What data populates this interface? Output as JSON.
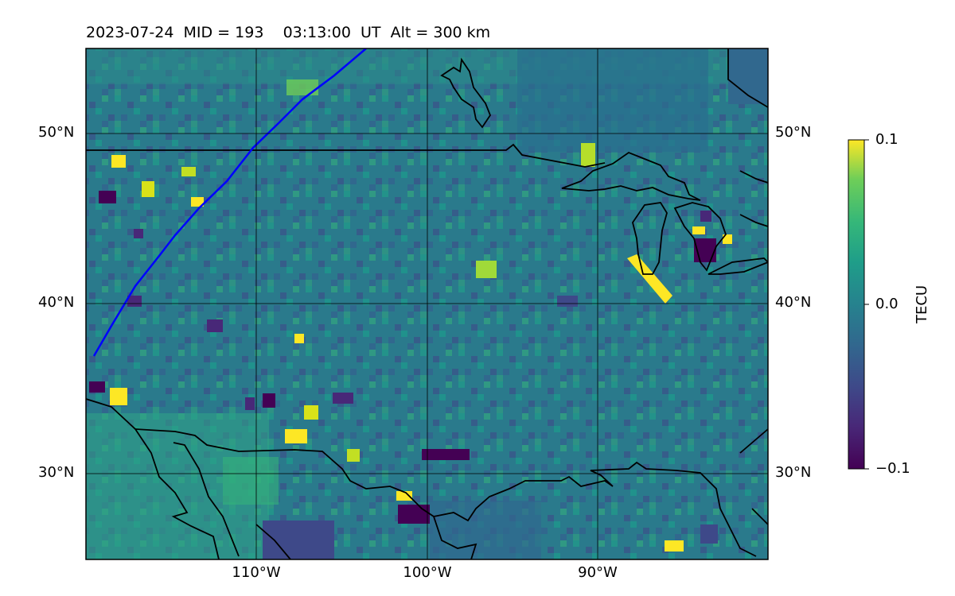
{
  "title": {
    "date": "2023-07-24",
    "mid": "MID = 193",
    "time": "03:13:00  UT",
    "alt": "Alt = 300 km"
  },
  "map": {
    "lat_labels": [
      "50°N",
      "40°N",
      "30°N"
    ],
    "lon_labels": [
      "110°W",
      "100°W",
      "90°W"
    ],
    "lon_range": [
      -120,
      -80
    ],
    "lat_range": [
      25,
      55
    ]
  },
  "colorbar": {
    "label": "TECU",
    "max": "0.1",
    "mid": "0.0",
    "min": "−0.1",
    "colormap": "viridis"
  },
  "overlays": {
    "track_color": "#0000ff",
    "coastline_color": "#000000"
  }
}
